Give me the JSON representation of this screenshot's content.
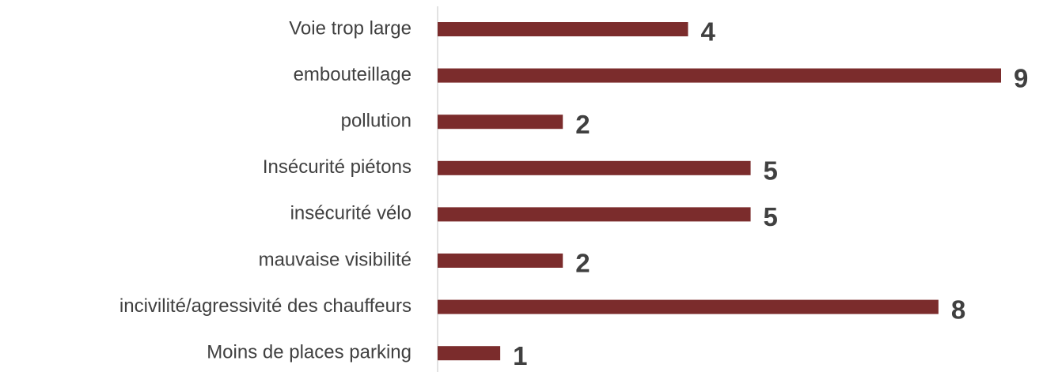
{
  "chart_data": {
    "type": "barh",
    "categories": [
      "Voie trop large",
      "embouteillage",
      "pollution",
      "Insécurité piétons",
      "insécurité vélo",
      "mauvaise visibilité",
      "incivilité/agressivité des chauffeurs",
      "Moins de places parking"
    ],
    "values": [
      4,
      9,
      2,
      5,
      5,
      2,
      8,
      1
    ],
    "color": "#7b2c2c",
    "xlim": [
      0,
      9
    ]
  }
}
